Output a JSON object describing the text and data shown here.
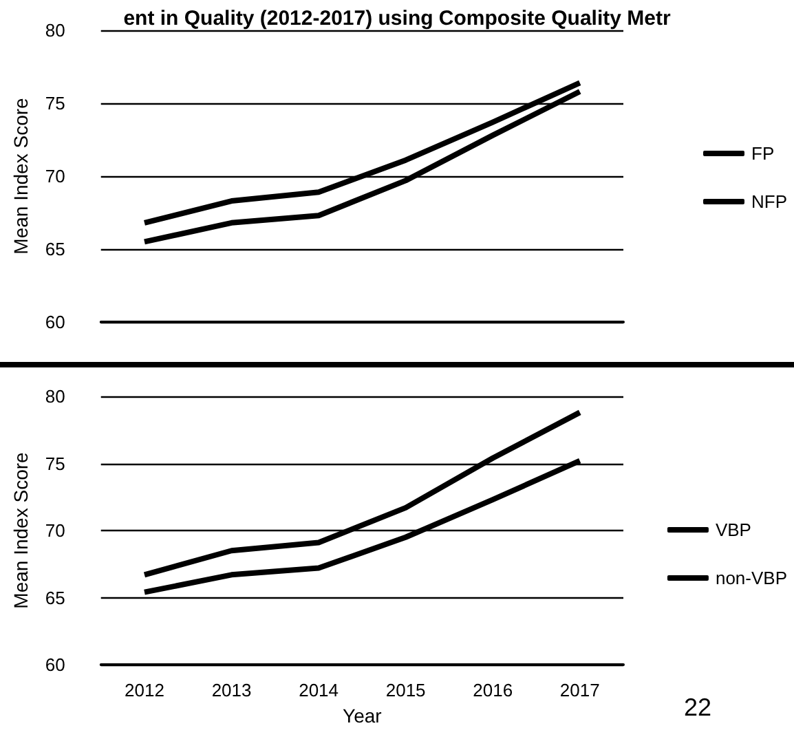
{
  "chart_data": [
    {
      "type": "line",
      "title": "ent in Quality (2012-2017) using Composite Quality Metr",
      "ylabel": "Mean Index Score",
      "categories": [
        "2012",
        "2013",
        "2014",
        "2015",
        "2016",
        "2017"
      ],
      "series": [
        {
          "name": "FP",
          "color": "#000000",
          "values": [
            66.8,
            68.3,
            68.9,
            71.1,
            73.7,
            76.4
          ]
        },
        {
          "name": "NFP",
          "color": "#000000",
          "values": [
            65.5,
            66.8,
            67.3,
            69.7,
            72.8,
            75.8
          ]
        }
      ],
      "ylim": [
        60,
        80
      ],
      "yticks": [
        60,
        65,
        70,
        75,
        80
      ],
      "grid": "y",
      "legend": "right",
      "marker": "none",
      "line_style": "solid",
      "tick_labels": "y"
    },
    {
      "type": "line",
      "xlabel": "Year",
      "ylabel": "Mean Index Score",
      "categories": [
        "2012",
        "2013",
        "2014",
        "2015",
        "2016",
        "2017"
      ],
      "series": [
        {
          "name": "VBP",
          "color": "#000000",
          "values": [
            66.7,
            68.5,
            69.1,
            71.7,
            75.4,
            78.8
          ]
        },
        {
          "name": "non-VBP",
          "color": "#000000",
          "values": [
            65.4,
            66.7,
            67.2,
            69.5,
            72.3,
            75.2
          ]
        }
      ],
      "ylim": [
        60,
        80
      ],
      "yticks": [
        60,
        65,
        70,
        75,
        80
      ],
      "grid": "y",
      "legend": "right",
      "marker": "none",
      "line_style": "solid",
      "annotations": [
        "22"
      ]
    }
  ]
}
